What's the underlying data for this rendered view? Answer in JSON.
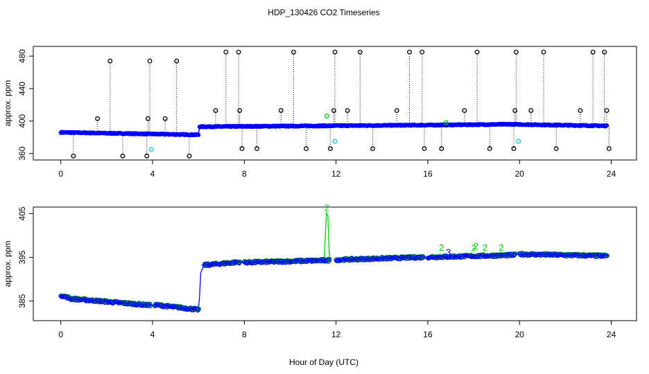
{
  "title": "HDP_130426  CO2 Timeseries",
  "xlabel": "Hour of Day (UTC)",
  "colors": {
    "black": "#000000",
    "blue": "#0000ff",
    "cyan": "#00cccc",
    "green": "#00cc00"
  },
  "chart_data": [
    {
      "type": "scatter",
      "name": "top",
      "ylabel": "approx. ppm",
      "xlim": [
        -1.2,
        25.1
      ],
      "ylim": [
        352,
        492
      ],
      "xticks": [
        0,
        4,
        8,
        12,
        16,
        20,
        24
      ],
      "yticks": [
        360,
        400,
        440,
        480
      ],
      "grid": false,
      "segments": [
        {
          "x0": 0.0,
          "x1": 6.0,
          "y0": 386,
          "y1": 383
        },
        {
          "x0": 6.05,
          "x1": 16.0,
          "y0": 393,
          "y1": 395
        },
        {
          "x0": 16.0,
          "x1": 19.6,
          "y0": 395,
          "y1": 396
        },
        {
          "x0": 19.6,
          "x1": 23.8,
          "y0": 396,
          "y1": 394
        }
      ],
      "outliers": [
        [
          0.55,
          357
        ],
        [
          1.6,
          403
        ],
        [
          2.15,
          474
        ],
        [
          2.7,
          357
        ],
        [
          3.75,
          357
        ],
        [
          3.8,
          403
        ],
        [
          3.88,
          474
        ],
        [
          4.55,
          403
        ],
        [
          5.05,
          474
        ],
        [
          5.6,
          357
        ],
        [
          6.75,
          413
        ],
        [
          7.2,
          485
        ],
        [
          7.75,
          485
        ],
        [
          7.8,
          413
        ],
        [
          7.9,
          366
        ],
        [
          8.55,
          366
        ],
        [
          9.6,
          413
        ],
        [
          10.15,
          485
        ],
        [
          10.7,
          366
        ],
        [
          11.75,
          366
        ],
        [
          11.9,
          413
        ],
        [
          11.95,
          485
        ],
        [
          12.5,
          413
        ],
        [
          13.05,
          485
        ],
        [
          13.6,
          366
        ],
        [
          14.65,
          413
        ],
        [
          15.2,
          485
        ],
        [
          15.75,
          485
        ],
        [
          15.85,
          366
        ],
        [
          16.6,
          366
        ],
        [
          17.6,
          413
        ],
        [
          18.15,
          485
        ],
        [
          18.7,
          366
        ],
        [
          19.75,
          366
        ],
        [
          19.8,
          413
        ],
        [
          19.85,
          485
        ],
        [
          20.5,
          413
        ],
        [
          21.05,
          485
        ],
        [
          21.6,
          366
        ],
        [
          22.65,
          413
        ],
        [
          23.2,
          485
        ],
        [
          23.7,
          485
        ],
        [
          23.8,
          413
        ],
        [
          23.9,
          366
        ]
      ],
      "cyan_points": [
        [
          3.95,
          365
        ],
        [
          11.95,
          375
        ],
        [
          19.95,
          375
        ]
      ],
      "green_points": [
        [
          11.6,
          406
        ],
        [
          16.8,
          398
        ]
      ]
    },
    {
      "type": "scatter",
      "name": "bottom",
      "ylabel": "approx. ppm",
      "xlim": [
        -1.2,
        25.1
      ],
      "ylim": [
        380.5,
        406.5
      ],
      "xticks": [
        0,
        4,
        8,
        12,
        16,
        20,
        24
      ],
      "yticks": [
        385,
        395,
        405
      ],
      "grid": false,
      "segments": [
        {
          "x0": 0.0,
          "x1": 0.45,
          "y0": 386.3,
          "y1": 385.5
        },
        {
          "x0": 0.45,
          "x1": 3.9,
          "y0": 385.5,
          "y1": 384.0
        },
        {
          "x0": 4.1,
          "x1": 6.0,
          "y0": 384.1,
          "y1": 383.0
        },
        {
          "x0": 6.25,
          "x1": 7.8,
          "y0": 393.2,
          "y1": 393.9
        },
        {
          "x0": 8.0,
          "x1": 11.7,
          "y0": 393.8,
          "y1": 394.3
        },
        {
          "x0": 12.0,
          "x1": 15.8,
          "y0": 394.4,
          "y1": 395.0
        },
        {
          "x0": 16.0,
          "x1": 19.8,
          "y0": 395.0,
          "y1": 395.5
        },
        {
          "x0": 20.0,
          "x1": 23.8,
          "y0": 395.7,
          "y1": 395.3
        }
      ],
      "line_path": [
        [
          0.0,
          386.3
        ],
        [
          0.45,
          385.5
        ],
        [
          3.9,
          384.0
        ],
        [
          4.1,
          384.1
        ],
        [
          6.0,
          383.0
        ],
        [
          6.05,
          386.0
        ],
        [
          6.1,
          391.5
        ],
        [
          6.25,
          393.2
        ],
        [
          7.8,
          393.9
        ]
      ],
      "spike": {
        "x": 11.6,
        "peak": 405.2,
        "base": 394.3,
        "label": "2"
      },
      "labels": [
        {
          "x": 11.6,
          "y": 405.6,
          "text": "2",
          "color": "green"
        },
        {
          "x": 16.6,
          "y": 396.5,
          "text": "2",
          "color": "green"
        },
        {
          "x": 16.9,
          "y": 395.5,
          "text": "3",
          "color": "blue"
        },
        {
          "x": 18.0,
          "y": 396.4,
          "text": "2",
          "color": "green"
        },
        {
          "x": 18.1,
          "y": 396.8,
          "text": "2",
          "color": "green"
        },
        {
          "x": 18.5,
          "y": 396.5,
          "text": "2",
          "color": "green"
        },
        {
          "x": 19.2,
          "y": 396.5,
          "text": "2",
          "color": "green"
        }
      ]
    }
  ]
}
